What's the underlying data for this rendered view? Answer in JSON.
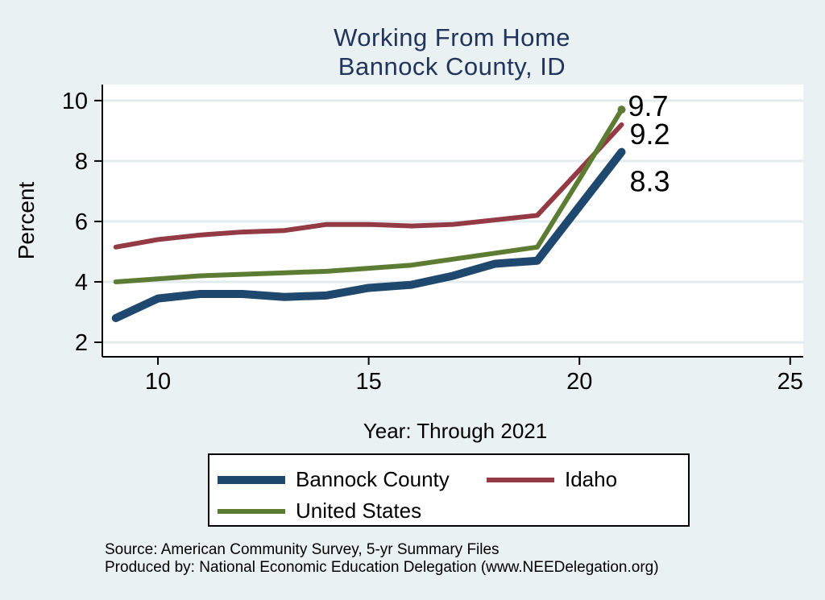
{
  "page": {
    "background": "#eaf1f3"
  },
  "title": {
    "line1": "Working From Home",
    "line2": "Bannock County, ID"
  },
  "colors": {
    "background": "#eaf1f3",
    "plot_background": "#ffffff",
    "gridline": "#e2ecef",
    "axis": "#000000",
    "title_text": "#20345c",
    "bannock_county": "#1e486e",
    "idaho": "#943a44",
    "united_states": "#5d7c33"
  },
  "chart_data": {
    "type": "line",
    "x": [
      9,
      10,
      11,
      12,
      13,
      14,
      15,
      16,
      17,
      18,
      19,
      20,
      21
    ],
    "x_years": "2009-2021",
    "series": [
      {
        "name": "Bannock County",
        "color": "#1e486e",
        "stroke_width": 10,
        "z": 3,
        "values": [
          2.8,
          3.45,
          3.6,
          3.6,
          3.5,
          3.55,
          3.8,
          3.9,
          4.2,
          4.6,
          4.7,
          6.5,
          8.3
        ],
        "end_label": {
          "text": "8.3",
          "dx": 10,
          "dy": 36
        }
      },
      {
        "name": "Idaho",
        "color": "#943a44",
        "stroke_width": 6,
        "z": 1,
        "values": [
          5.15,
          5.4,
          5.55,
          5.65,
          5.7,
          5.9,
          5.9,
          5.85,
          5.9,
          6.05,
          6.2,
          7.7,
          9.2
        ],
        "end_label": {
          "text": "9.2",
          "dx": 10,
          "dy": 11
        }
      },
      {
        "name": "United States",
        "color": "#5d7c33",
        "stroke_width": 6,
        "z": 2,
        "values": [
          4.0,
          4.1,
          4.2,
          4.25,
          4.3,
          4.35,
          4.45,
          4.55,
          4.75,
          4.95,
          5.15,
          7.4,
          9.7
        ],
        "end_label": {
          "text": "9.7",
          "dx": 8,
          "dy": -5
        },
        "end_dot": true
      }
    ],
    "xlabel": "Year: Through 2021",
    "ylabel": "Percent",
    "xticks": [
      10,
      15,
      20,
      25
    ],
    "yticks": [
      2,
      4,
      6,
      8,
      10
    ],
    "xlim": [
      8.68,
      25.31
    ],
    "ylim": [
      1.52,
      10.53
    ],
    "grid": "horizontal",
    "legend_position": "bottom"
  },
  "legend": {
    "items": [
      "Bannock County",
      "Idaho",
      "United States"
    ]
  },
  "source": {
    "line1": "Source: American Community Survey, 5-yr Summary Files",
    "line2": "Produced by: National Economic Education Delegation (www.NEEDelegation.org)"
  }
}
